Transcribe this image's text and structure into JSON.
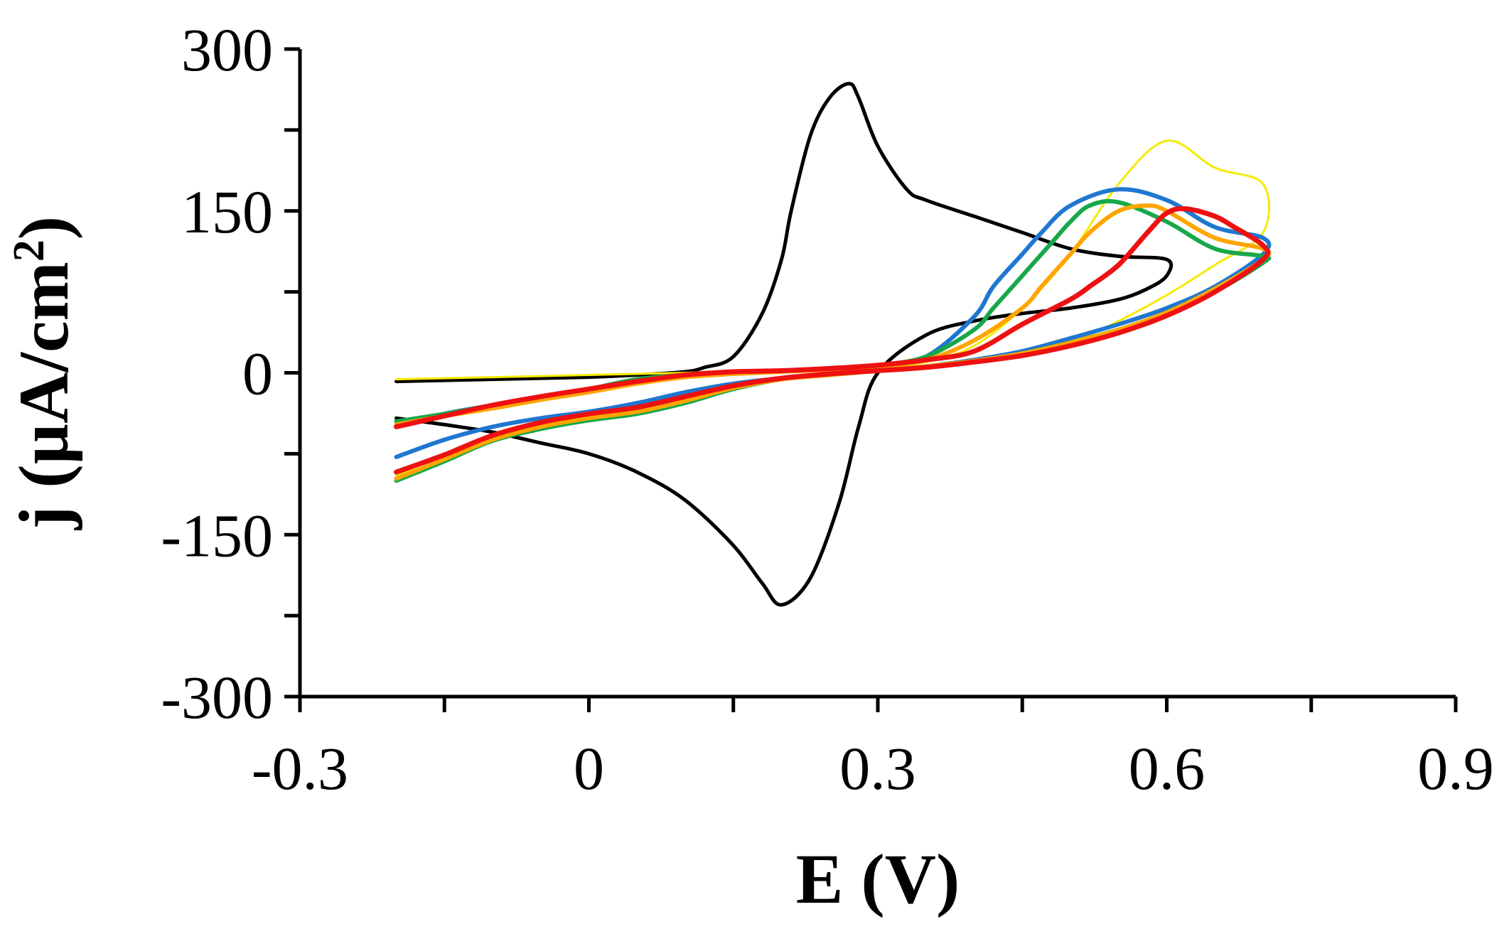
{
  "chart_data": {
    "type": "line",
    "title": "",
    "xlabel": "E (V)",
    "ylabel_main": "j (µA/cm",
    "ylabel_sup": "2",
    "ylabel_close": ")",
    "xlim": [
      -0.3,
      0.9
    ],
    "ylim": [
      -300,
      300
    ],
    "xticks": [
      -0.3,
      0,
      0.3,
      0.6,
      0.9
    ],
    "xtick_labels": [
      "-0.3",
      "0",
      "0.3",
      "0.6",
      "0.9"
    ],
    "xminor": [
      -0.15,
      0.15,
      0.45,
      0.75
    ],
    "yticks": [
      300,
      150,
      0,
      -150,
      -300
    ],
    "ytick_labels": [
      "300",
      "150",
      "0",
      "-150",
      "-300"
    ],
    "yminor": [
      225,
      75,
      -75,
      -225
    ],
    "grid": false,
    "legend": "none",
    "series": [
      {
        "name": "black",
        "color": "#000000",
        "x": [
          -0.2,
          -0.15,
          -0.1,
          -0.05,
          0,
          0.05,
          0.1,
          0.15,
          0.18,
          0.2,
          0.23,
          0.26,
          0.28,
          0.3,
          0.35,
          0.4,
          0.45,
          0.5,
          0.55,
          0.58,
          0.6,
          0.6,
          0.55,
          0.5,
          0.45,
          0.4,
          0.35,
          0.33,
          0.3,
          0.28,
          0.27,
          0.25,
          0.23,
          0.21,
          0.2,
          0.18,
          0.15,
          0.12,
          0.1,
          0.05,
          0,
          -0.05,
          -0.1,
          -0.15,
          -0.2
        ],
        "y": [
          -42,
          -48,
          -55,
          -65,
          -75,
          -92,
          -118,
          -160,
          -195,
          -215,
          -190,
          -120,
          -50,
          0,
          35,
          48,
          55,
          60,
          68,
          78,
          90,
          105,
          108,
          115,
          130,
          145,
          160,
          170,
          210,
          255,
          268,
          255,
          220,
          150,
          105,
          55,
          15,
          5,
          1,
          -2,
          -4,
          -5,
          -6,
          -7,
          -8
        ]
      },
      {
        "name": "yellow",
        "color": "#f5ea00",
        "x": [
          -0.2,
          -0.15,
          -0.1,
          -0.05,
          0,
          0.05,
          0.1,
          0.15,
          0.2,
          0.25,
          0.3,
          0.35,
          0.4,
          0.45,
          0.5,
          0.55,
          0.6,
          0.65,
          0.7,
          0.7,
          0.65,
          0.6,
          0.55,
          0.5,
          0.45,
          0.4,
          0.35,
          0.3,
          0.25,
          0.2,
          0.15,
          0.1,
          0.05,
          0,
          -0.05,
          -0.1,
          -0.15,
          -0.2
        ],
        "y": [
          -95,
          -80,
          -60,
          -48,
          -42,
          -35,
          -25,
          -12,
          -5,
          -2,
          2,
          5,
          10,
          18,
          28,
          48,
          72,
          100,
          130,
          175,
          190,
          215,
          175,
          110,
          60,
          25,
          10,
          5,
          3,
          2,
          1,
          0,
          -1,
          -2,
          -3,
          -4,
          -5,
          -6
        ]
      },
      {
        "name": "blue",
        "color": "#1f77d0",
        "x": [
          -0.2,
          -0.15,
          -0.1,
          -0.05,
          0,
          0.05,
          0.1,
          0.15,
          0.2,
          0.25,
          0.3,
          0.35,
          0.4,
          0.45,
          0.5,
          0.55,
          0.6,
          0.65,
          0.7,
          0.7,
          0.65,
          0.6,
          0.55,
          0.5,
          0.47,
          0.45,
          0.42,
          0.4,
          0.35,
          0.3,
          0.25,
          0.2,
          0.15,
          0.1,
          0.05,
          0,
          -0.05,
          -0.1,
          -0.15,
          -0.2
        ],
        "y": [
          -78,
          -62,
          -50,
          -42,
          -36,
          -28,
          -18,
          -10,
          -5,
          -1,
          2,
          6,
          12,
          20,
          32,
          45,
          60,
          80,
          110,
          125,
          135,
          160,
          170,
          155,
          130,
          110,
          80,
          52,
          15,
          7,
          4,
          2,
          0,
          -2,
          -6,
          -15,
          -22,
          -30,
          -38,
          -50
        ]
      },
      {
        "name": "green",
        "color": "#18a84a",
        "x": [
          -0.2,
          -0.15,
          -0.1,
          -0.05,
          0,
          0.05,
          0.1,
          0.15,
          0.2,
          0.25,
          0.3,
          0.35,
          0.4,
          0.45,
          0.5,
          0.55,
          0.6,
          0.65,
          0.7,
          0.7,
          0.65,
          0.6,
          0.55,
          0.52,
          0.5,
          0.48,
          0.45,
          0.42,
          0.4,
          0.35,
          0.3,
          0.25,
          0.2,
          0.15,
          0.1,
          0.05,
          0,
          -0.05,
          -0.1,
          -0.15,
          -0.2
        ],
        "y": [
          -100,
          -82,
          -63,
          -52,
          -44,
          -38,
          -28,
          -15,
          -6,
          -2,
          2,
          6,
          11,
          18,
          28,
          40,
          55,
          75,
          102,
          108,
          115,
          140,
          158,
          155,
          140,
          120,
          90,
          60,
          40,
          15,
          7,
          4,
          2,
          0,
          -2,
          -6,
          -15,
          -22,
          -30,
          -38,
          -45
        ]
      },
      {
        "name": "orange",
        "color": "#ffa500",
        "x": [
          -0.2,
          -0.15,
          -0.1,
          -0.05,
          0,
          0.05,
          0.1,
          0.15,
          0.2,
          0.25,
          0.3,
          0.35,
          0.4,
          0.45,
          0.5,
          0.55,
          0.6,
          0.65,
          0.7,
          0.7,
          0.65,
          0.6,
          0.58,
          0.55,
          0.52,
          0.5,
          0.47,
          0.45,
          0.4,
          0.35,
          0.3,
          0.25,
          0.2,
          0.15,
          0.1,
          0.05,
          0,
          -0.05,
          -0.1,
          -0.15,
          -0.2
        ],
        "y": [
          -98,
          -80,
          -62,
          -50,
          -42,
          -36,
          -26,
          -14,
          -6,
          -2,
          2,
          6,
          11,
          18,
          28,
          40,
          56,
          78,
          105,
          115,
          125,
          150,
          155,
          150,
          130,
          110,
          80,
          60,
          30,
          12,
          6,
          3,
          1,
          -1,
          -4,
          -10,
          -18,
          -25,
          -33,
          -40,
          -48
        ]
      },
      {
        "name": "red",
        "color": "#ee1111",
        "x": [
          -0.2,
          -0.15,
          -0.1,
          -0.05,
          0,
          0.05,
          0.1,
          0.15,
          0.2,
          0.25,
          0.3,
          0.35,
          0.4,
          0.45,
          0.5,
          0.55,
          0.6,
          0.65,
          0.7,
          0.7,
          0.67,
          0.65,
          0.62,
          0.6,
          0.58,
          0.55,
          0.52,
          0.5,
          0.45,
          0.4,
          0.35,
          0.3,
          0.25,
          0.2,
          0.15,
          0.1,
          0.05,
          0,
          -0.05,
          -0.1,
          -0.15,
          -0.2
        ],
        "y": [
          -92,
          -76,
          -58,
          -46,
          -38,
          -32,
          -22,
          -12,
          -5,
          -1,
          2,
          5,
          10,
          16,
          25,
          37,
          53,
          75,
          105,
          118,
          135,
          145,
          152,
          148,
          130,
          100,
          80,
          68,
          45,
          20,
          12,
          7,
          4,
          2,
          1,
          -2,
          -8,
          -15,
          -22,
          -30,
          -40,
          -50
        ]
      }
    ]
  }
}
